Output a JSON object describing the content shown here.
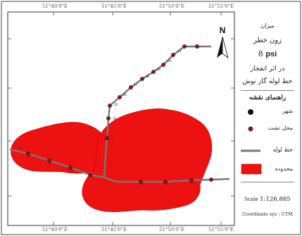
{
  "map": {
    "ticks": {
      "top": [
        "51°40'0\"E",
        "51°45'0\"E",
        "51°50'0\"E",
        "51°55'0\"E"
      ],
      "bottom": [
        "51°40'0\"E",
        "51°45'0\"E",
        "51°50'0\"E",
        "51°55'0\"E"
      ]
    },
    "north_label": "N",
    "pipeline_station_labels": [
      "25",
      "26",
      "27",
      "28",
      "29",
      "30",
      "31",
      "32",
      "33",
      "34",
      "35",
      "36",
      "37",
      "38",
      "39",
      "40",
      "41"
    ]
  },
  "legend": {
    "title_lines": [
      "میزان",
      "زون خطر"
    ],
    "psi_value": "8",
    "psi_unit": "psi",
    "subtitle_lines": [
      "در اثر انفجار",
      "خط لوله گاز نوش"
    ],
    "guide_title": "راهنمای نقشه",
    "items": [
      {
        "label": "شهر",
        "symbol": "city-dot",
        "color": "#111111"
      },
      {
        "label": "محل نشت",
        "symbol": "leak-dot",
        "color": "#8a1a1a"
      },
      {
        "label": "خط لوله",
        "symbol": "pipeline-line",
        "color": "#777777"
      },
      {
        "label": "محدوده",
        "symbol": "zone-rect",
        "color": "#ee1111"
      }
    ],
    "scale_label": "Scale",
    "scale_value": "1:126,885",
    "coord_label": "Coordinate sys : UTM"
  },
  "colors": {
    "zone": "#ee1111",
    "pipeline": "#777777",
    "leak_point": "#8a1a1a"
  }
}
